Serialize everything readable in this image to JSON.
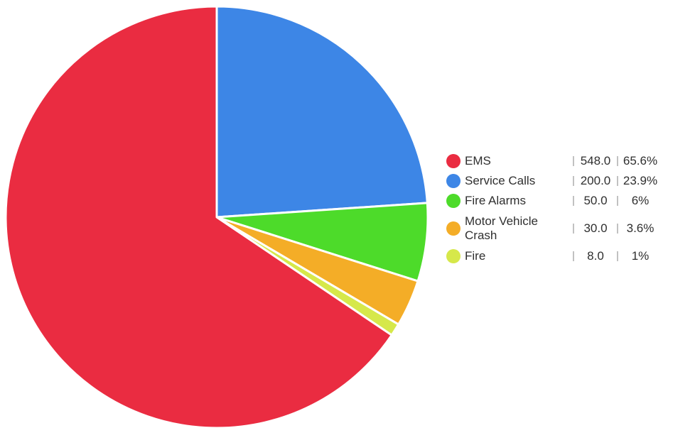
{
  "chart_data": {
    "type": "pie",
    "start_angle_deg": 90,
    "direction": "clockwise",
    "slices": [
      {
        "name": "Service Calls",
        "value": 200.0,
        "value_label": "200.0",
        "percent_label": "23.9%",
        "color": "#3d86e6"
      },
      {
        "name": "Fire Alarms",
        "value": 50.0,
        "value_label": "50.0",
        "percent_label": "6%",
        "color": "#4ddb2a"
      },
      {
        "name": "Motor Vehicle Crash",
        "value": 30.0,
        "value_label": "30.0",
        "percent_label": "3.6%",
        "color": "#f4ad27"
      },
      {
        "name": "Fire",
        "value": 8.0,
        "value_label": "8.0",
        "percent_label": "1%",
        "color": "#d6e84a"
      },
      {
        "name": "EMS",
        "value": 548.0,
        "value_label": "548.0",
        "percent_label": "65.6%",
        "color": "#ea2c41"
      }
    ]
  },
  "legend": {
    "placement": "right",
    "separator": "|",
    "items": [
      {
        "label": "EMS",
        "value": "548.0",
        "percent": "65.6%",
        "color": "#ea2c41"
      },
      {
        "label": "Service Calls",
        "value": "200.0",
        "percent": "23.9%",
        "color": "#3d86e6"
      },
      {
        "label": "Fire Alarms",
        "value": "50.0",
        "percent": "6%",
        "color": "#4ddb2a"
      },
      {
        "label": "Motor Vehicle Crash",
        "value": "30.0",
        "percent": "3.6%",
        "color": "#f4ad27"
      },
      {
        "label": "Fire",
        "value": "8.0",
        "percent": "1%",
        "color": "#d6e84a"
      }
    ]
  }
}
